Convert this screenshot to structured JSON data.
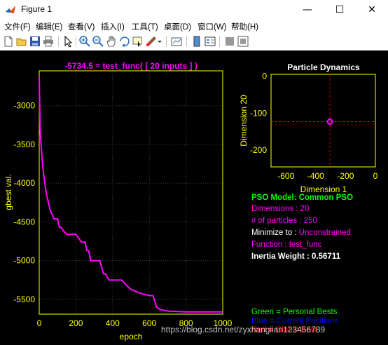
{
  "window": {
    "title": "Figure 1",
    "minimize_glyph": "—",
    "maximize_glyph": "☐",
    "close_glyph": "✕"
  },
  "menu": [
    "文件(F)",
    "编辑(E)",
    "查看(V)",
    "插入(I)",
    "工具(T)",
    "桌面(D)",
    "窗口(W)",
    "帮助(H)"
  ],
  "toolbar_icons": [
    "new-figure-icon",
    "open-file-icon",
    "save-icon",
    "print-icon",
    "pointer-icon",
    "zoom-in-icon",
    "zoom-out-icon",
    "pan-hand-icon",
    "rotate-3d-icon",
    "data-cursor-icon",
    "brush-icon",
    "brush-dropdown-icon",
    "link-plot-icon",
    "colorbar-icon",
    "legend-icon",
    "hide-plot-tools-icon",
    "show-plot-tools-icon"
  ],
  "colors": {
    "background": "#000000",
    "axis": "#ffff00",
    "curve": "#ff00ff",
    "green": "#00ff00",
    "magenta": "#ff00ff",
    "white": "#ffffff",
    "blue": "#0000ff",
    "red": "#ff0000"
  },
  "chart_data": [
    {
      "type": "line",
      "title": "-5734.5 = test_func( [ 20 inputs ] )",
      "xlabel": "epoch",
      "ylabel": "gbest val.",
      "xlim": [
        0,
        1000
      ],
      "ylim": [
        -5690,
        -2550
      ],
      "xticks": [
        0,
        200,
        400,
        600,
        800,
        1000
      ],
      "yticks": [
        -5500,
        -5000,
        -4500,
        -4000,
        -3500,
        -3000
      ],
      "grid": true,
      "series": [
        {
          "x": [
            0,
            5,
            10,
            15,
            20,
            30,
            40,
            50,
            60,
            70,
            80,
            90,
            100,
            110,
            120,
            130,
            150,
            180,
            200,
            230,
            250,
            260,
            270,
            280,
            300,
            330,
            350,
            360,
            380,
            400,
            450,
            480,
            500,
            550,
            600,
            620,
            640,
            660,
            700,
            800,
            900,
            1000
          ],
          "y": [
            -2630,
            -3300,
            -3500,
            -3650,
            -3800,
            -4000,
            -4150,
            -4250,
            -4350,
            -4400,
            -4460,
            -4460,
            -4460,
            -4570,
            -4570,
            -4610,
            -4660,
            -4660,
            -4660,
            -4760,
            -4760,
            -4870,
            -4870,
            -5000,
            -5000,
            -5000,
            -5170,
            -5170,
            -5250,
            -5250,
            -5250,
            -5330,
            -5370,
            -5420,
            -5450,
            -5450,
            -5600,
            -5630,
            -5650,
            -5660,
            -5660,
            -5660
          ]
        }
      ]
    },
    {
      "type": "scatter",
      "title": "Particle Dynamics",
      "xlabel": "Dimension 1",
      "ylabel": "Dimension 20",
      "xlim": [
        -700,
        0
      ],
      "ylim": [
        -245,
        5
      ],
      "xticks": [
        -600,
        -400,
        -200,
        0
      ],
      "yticks": [
        0,
        -100,
        -200
      ],
      "points": [
        {
          "x": -305,
          "y": -123
        }
      ]
    }
  ],
  "info": {
    "pso_model": "PSO Model: Common PSO",
    "dimensions": "Dimensions : 20",
    "particles": "# of particles : 250",
    "minimize_label": "Minimize to : ",
    "minimize_value": "Unconstrained",
    "function": "Function : test_func",
    "inertia": "Inertia Weight : 0.56711"
  },
  "legend": {
    "green": "Green = Personal Bests",
    "blue": "Blue  = Current Positions",
    "red": "Red = Global Best"
  },
  "watermark": "https://blog.csdn.net/zyxhangiian123456789"
}
